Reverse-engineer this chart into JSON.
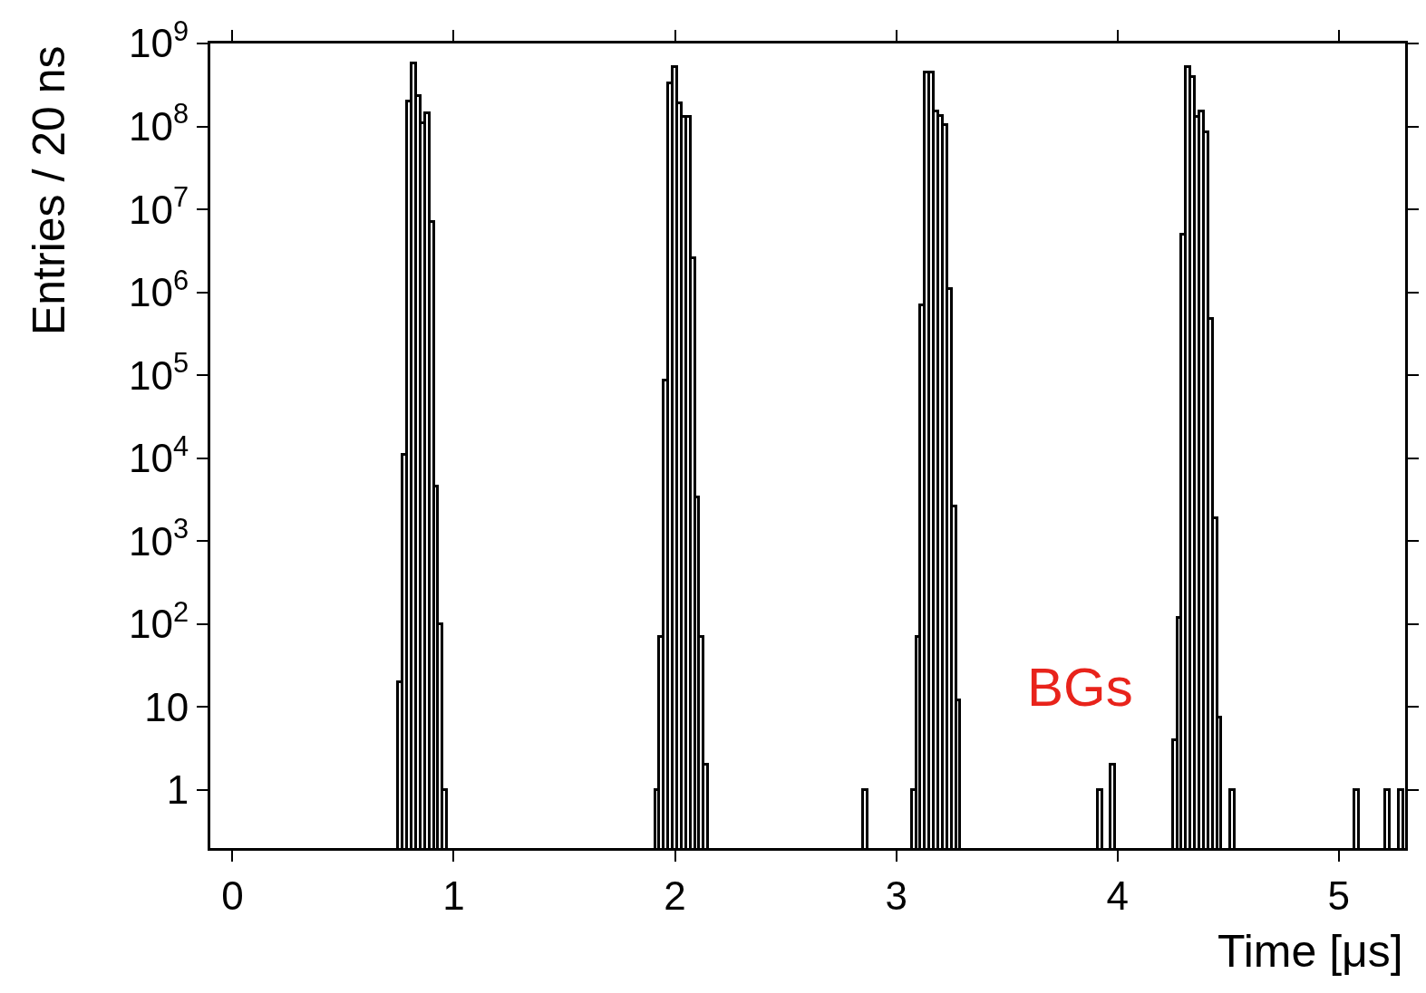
{
  "chart_data": {
    "type": "histogram",
    "xlabel": "Time [μs]",
    "ylabel": "Entries / 20 ns",
    "bins": [
      0.75,
      0.77,
      0.79,
      0.81,
      0.83,
      0.85,
      0.87,
      0.89,
      0.91,
      0.93,
      0.95,
      0.97,
      1.91,
      1.93,
      1.95,
      1.97,
      1.99,
      2.01,
      2.03,
      2.05,
      2.07,
      2.09,
      2.11,
      2.13,
      2.15,
      2.85,
      2.87,
      3.07,
      3.09,
      3.11,
      3.13,
      3.15,
      3.17,
      3.19,
      3.21,
      3.23,
      3.25,
      3.27,
      3.29,
      3.91,
      3.93,
      3.97,
      3.99,
      4.25,
      4.27,
      4.29,
      4.31,
      4.33,
      4.35,
      4.37,
      4.39,
      4.41,
      4.43,
      4.45,
      4.47,
      4.51,
      4.53,
      5.07,
      5.09,
      5.21,
      5.23,
      5.27,
      5.29
    ],
    "values": [
      20,
      11000,
      200000000,
      580000000,
      230000000,
      110000000,
      145000000,
      7000000,
      4600,
      100,
      1,
      null,
      1,
      70,
      87000,
      330000000,
      520000000,
      190000000,
      130000000,
      130000000,
      2600000,
      3400,
      70,
      2,
      null,
      1,
      null,
      1,
      70,
      700000,
      450000000,
      450000000,
      150000000,
      135000000,
      105000000,
      1100000,
      2600,
      12,
      null,
      1,
      null,
      2,
      null,
      4,
      120,
      4900000,
      520000000,
      390000000,
      130000000,
      150000000,
      85000000,
      480000,
      1900,
      7.5,
      null,
      1,
      null,
      1,
      null,
      1,
      null,
      1
    ],
    "color": "#000000",
    "log": "y",
    "xlim": [
      -0.1,
      5.3
    ],
    "xticks": [
      0,
      1,
      2,
      3,
      4,
      5
    ],
    "ylim": [
      0.2,
      1000000000
    ],
    "yticks": [
      {
        "value": 1,
        "label": "1"
      },
      {
        "value": 10,
        "label": "10"
      },
      {
        "value": 100,
        "label": "10$^{2}$"
      },
      {
        "value": 1000,
        "label": "10$^{3}$"
      },
      {
        "value": 10000,
        "label": "10$^{4}$"
      },
      {
        "value": 100000,
        "label": "10$^{5}$"
      },
      {
        "value": 1000000,
        "label": "10$^{6}$"
      },
      {
        "value": 10000000,
        "label": "10$^{7}$"
      },
      {
        "value": 100000000,
        "label": "10$^{8}$"
      },
      {
        "value": 1000000000,
        "label": "10$^{9}$"
      }
    ],
    "annotations": [
      "BGs"
    ]
  }
}
